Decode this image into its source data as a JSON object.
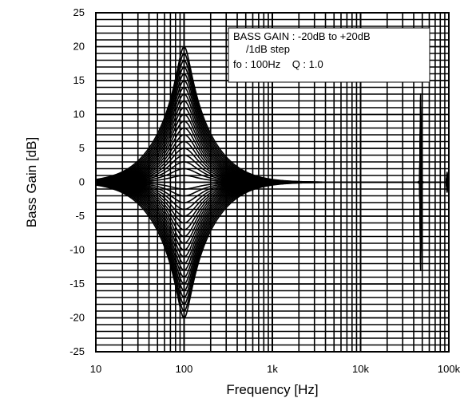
{
  "chart_data": {
    "type": "line",
    "xlabel": "Frequency [Hz]",
    "ylabel": "Bass Gain [dB]",
    "xscale": "log",
    "xlim": [
      10,
      100000
    ],
    "ylim": [
      -25,
      25
    ],
    "x_ticks": [
      {
        "value": 10,
        "label": "10"
      },
      {
        "value": 100,
        "label": "100"
      },
      {
        "value": 1000,
        "label": "1k"
      },
      {
        "value": 10000,
        "label": "10k"
      },
      {
        "value": 100000,
        "label": "100k"
      }
    ],
    "y_ticks": [
      {
        "value": 25,
        "label": "25"
      },
      {
        "value": 20,
        "label": "20"
      },
      {
        "value": 15,
        "label": "15"
      },
      {
        "value": 10,
        "label": "10"
      },
      {
        "value": 5,
        "label": "5"
      },
      {
        "value": 0,
        "label": "0"
      },
      {
        "value": -5,
        "label": "-5"
      },
      {
        "value": -10,
        "label": "-10"
      },
      {
        "value": -15,
        "label": "-15"
      },
      {
        "value": -20,
        "label": "-20"
      },
      {
        "value": -25,
        "label": "-25"
      }
    ],
    "grid": true,
    "annotation": {
      "lines": [
        "BASS GAIN : -20dB to +20dB",
        "/1dB step",
        "fo : 100Hz    Q : 1.0"
      ],
      "placement": "top-right"
    },
    "curve_family": {
      "description_free": true,
      "center_frequency": 100,
      "q": 1.0,
      "gain_min": -20,
      "gain_max": 20,
      "gain_step": 1
    },
    "series_color": "#000000"
  }
}
